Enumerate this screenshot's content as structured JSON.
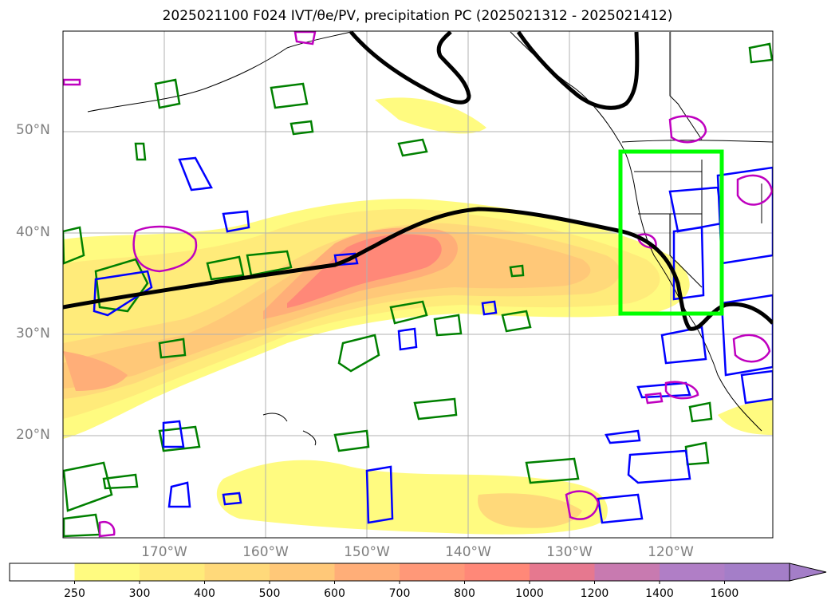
{
  "title": "2025021100 F024 IVT/θe/PV, precipitation PC (2025021312 - 2025021412)",
  "lat_labels": [
    "50°N",
    "40°N",
    "30°N",
    "20°N"
  ],
  "lon_labels": [
    "170°W",
    "160°W",
    "150°W",
    "140°W",
    "130°W",
    "120°W"
  ],
  "colorbar": {
    "labels": [
      "250",
      "300",
      "400",
      "500",
      "600",
      "700",
      "800",
      "1000",
      "1200",
      "1400",
      "1600"
    ],
    "colors": [
      "#ffffff",
      "#fffb80",
      "#ffeb7a",
      "#ffd97a",
      "#ffc878",
      "#ffae78",
      "#ff9878",
      "#ff8878",
      "#e6788f",
      "#c87ab0",
      "#b07ec6",
      "#a47ec8"
    ],
    "extend": "max"
  },
  "colors": {
    "theta_e_contour": "#000000",
    "pv_positive": "#0000ff",
    "pv_green": "#008000",
    "pv_magenta": "#bf00bf",
    "highlight_box": "#00ff00",
    "coastline": "#000000",
    "grid": "#b0b0b0"
  },
  "map": {
    "lon_range": [
      -180,
      -110
    ],
    "lat_range": [
      10,
      60
    ],
    "highlight_box": {
      "lon": [
        -125,
        -115
      ],
      "lat": [
        32,
        48
      ]
    }
  }
}
